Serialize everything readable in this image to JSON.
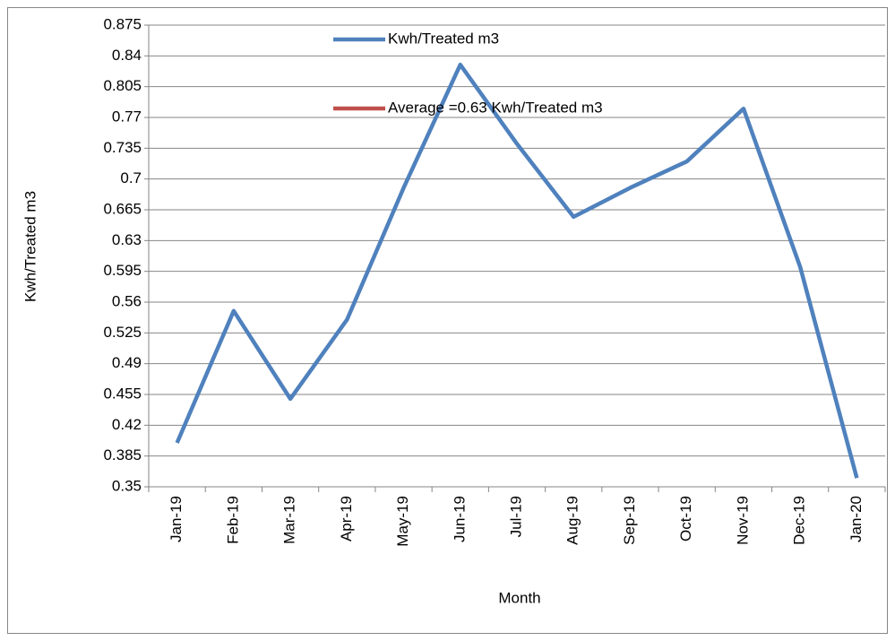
{
  "chart_data": {
    "type": "line",
    "x_label": "Month",
    "y_label": "Kwh/Treated m3",
    "categories": [
      "Jan-19",
      "Feb-19",
      "Mar-19",
      "Apr-19",
      "May-19",
      "Jun-19",
      "Jul-19",
      "Aug-19",
      "Sep-19",
      "Oct-19",
      "Nov-19",
      "Dec-19",
      "Jan-20"
    ],
    "series": [
      {
        "name": "Kwh/Treated m3",
        "color": "#4f81bd",
        "values": [
          0.4,
          0.55,
          0.45,
          0.54,
          0.69,
          0.83,
          0.74,
          0.657,
          0.69,
          0.72,
          0.78,
          0.6,
          0.36
        ]
      },
      {
        "name": "Average =0.63 Kwh/Treated m3",
        "color": "#c0504d",
        "values": [
          null,
          null,
          null,
          null,
          null,
          null,
          null,
          null,
          null,
          null,
          null,
          null,
          null
        ]
      }
    ],
    "ylim": [
      0.35,
      0.875
    ],
    "yticks": [
      0.35,
      0.385,
      0.42,
      0.455,
      0.49,
      0.525,
      0.56,
      0.595,
      0.63,
      0.665,
      0.7,
      0.735,
      0.77,
      0.805,
      0.84,
      0.875
    ],
    "grid": true
  }
}
